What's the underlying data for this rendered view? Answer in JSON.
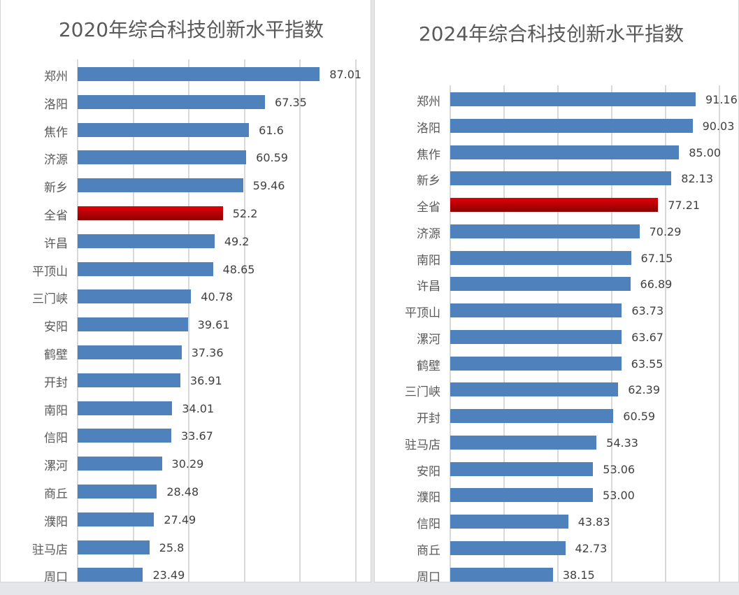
{
  "chart_data": [
    {
      "type": "bar",
      "orientation": "horizontal",
      "title": "2020年综合科技创新水平指数",
      "xlim": [
        0,
        100
      ],
      "grid": true,
      "highlight_color": "#c00000",
      "bar_color": "#4f81bd",
      "highlight_category": "全省",
      "categories": [
        "郑州",
        "洛阳",
        "焦作",
        "济源",
        "新乡",
        "全省",
        "许昌",
        "平顶山",
        "三门峡",
        "安阳",
        "鹤壁",
        "开封",
        "南阳",
        "信阳",
        "漯河",
        "商丘",
        "濮阳",
        "驻马店",
        "周口"
      ],
      "values": [
        87.01,
        67.35,
        61.6,
        60.59,
        59.46,
        52.2,
        49.2,
        48.65,
        40.78,
        39.61,
        37.36,
        36.91,
        34.01,
        33.67,
        30.29,
        28.48,
        27.49,
        25.8,
        23.49
      ],
      "labels": [
        "87.01",
        "67.35",
        "61.6",
        "60.59",
        "59.46",
        "52.2",
        "49.2",
        "48.65",
        "40.78",
        "39.61",
        "37.36",
        "36.91",
        "34.01",
        "33.67",
        "30.29",
        "28.48",
        "27.49",
        "25.8",
        "23.49"
      ]
    },
    {
      "type": "bar",
      "orientation": "horizontal",
      "title": "2024年综合科技创新水平指数",
      "xlim": [
        0,
        100
      ],
      "grid": true,
      "highlight_color": "#c00000",
      "bar_color": "#4f81bd",
      "highlight_category": "全省",
      "categories": [
        "郑州",
        "洛阳",
        "焦作",
        "新乡",
        "全省",
        "济源",
        "南阳",
        "许昌",
        "平顶山",
        "漯河",
        "鹤壁",
        "三门峡",
        "开封",
        "驻马店",
        "安阳",
        "濮阳",
        "信阳",
        "商丘",
        "周口"
      ],
      "values": [
        91.16,
        90.03,
        85.0,
        82.13,
        77.21,
        70.29,
        67.15,
        66.89,
        63.73,
        63.67,
        63.55,
        62.39,
        60.59,
        54.33,
        53.06,
        53.0,
        43.83,
        42.73,
        38.15
      ],
      "labels": [
        "91.16",
        "90.03",
        "85.00",
        "82.13",
        "77.21",
        "70.29",
        "67.15",
        "66.89",
        "63.73",
        "63.67",
        "63.55",
        "62.39",
        "60.59",
        "54.33",
        "53.06",
        "53.00",
        "43.83",
        "42.73",
        "38.15"
      ]
    }
  ]
}
